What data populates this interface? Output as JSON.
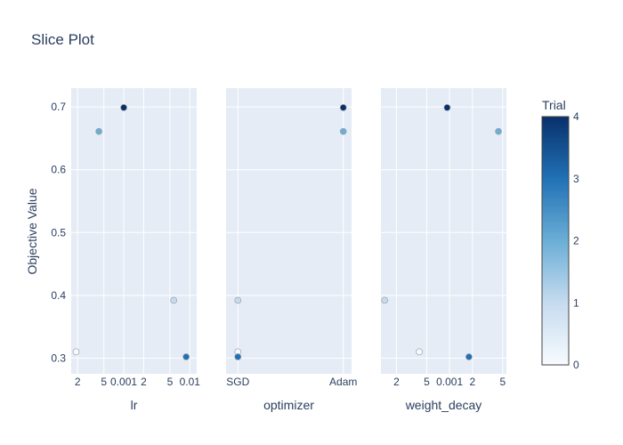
{
  "chart_data": {
    "type": "scatter",
    "title": "Slice Plot",
    "ylabel": "Objective Value",
    "ylim": [
      0.275,
      0.73
    ],
    "yticks": [
      0.3,
      0.4,
      0.5,
      0.6,
      0.7
    ],
    "ytick_labels": [
      "0.3",
      "0.4",
      "0.5",
      "0.6",
      "0.7"
    ],
    "colorbar": {
      "title": "Trial",
      "range": [
        0,
        4
      ],
      "ticks": [
        0,
        1,
        2,
        3,
        4
      ],
      "tick_labels": [
        "0",
        "1",
        "2",
        "3",
        "4"
      ],
      "colors": [
        "#f7fbff",
        "#c6dbef",
        "#6baed6",
        "#2171b5",
        "#08306b"
      ]
    },
    "panels": [
      {
        "xlabel": "lr",
        "scale": "log",
        "xlim": [
          0.00016,
          0.0127
        ],
        "xticks": [
          0.0002,
          0.0005,
          0.001,
          0.002,
          0.005,
          0.01
        ],
        "xtick_labels": [
          "2",
          "5",
          "0.001",
          "2",
          "5",
          "0.01"
        ],
        "points": [
          {
            "trial": 0,
            "x": 0.00019,
            "y": 0.31
          },
          {
            "trial": 1,
            "x": 0.0057,
            "y": 0.392
          },
          {
            "trial": 2,
            "x": 0.00042,
            "y": 0.661
          },
          {
            "trial": 3,
            "x": 0.0088,
            "y": 0.302
          },
          {
            "trial": 4,
            "x": 0.001,
            "y": 0.699
          }
        ]
      },
      {
        "xlabel": "optimizer",
        "scale": "category",
        "categories": [
          "SGD",
          "Adam"
        ],
        "xtick_labels": [
          "SGD",
          "Adam"
        ],
        "points": [
          {
            "trial": 0,
            "x": "SGD",
            "y": 0.31
          },
          {
            "trial": 1,
            "x": "SGD",
            "y": 0.392
          },
          {
            "trial": 2,
            "x": "Adam",
            "y": 0.661
          },
          {
            "trial": 3,
            "x": "SGD",
            "y": 0.302
          },
          {
            "trial": 4,
            "x": "Adam",
            "y": 0.699
          }
        ]
      },
      {
        "xlabel": "weight_decay",
        "scale": "log",
        "xlim": [
          0.000125,
          0.0056
        ],
        "xticks": [
          0.0002,
          0.0005,
          0.001,
          0.002,
          0.005
        ],
        "xtick_labels": [
          "2",
          "5",
          "0.001",
          "2",
          "5"
        ],
        "points": [
          {
            "trial": 0,
            "x": 0.0004,
            "y": 0.31
          },
          {
            "trial": 1,
            "x": 0.00014,
            "y": 0.392
          },
          {
            "trial": 2,
            "x": 0.0044,
            "y": 0.661
          },
          {
            "trial": 3,
            "x": 0.0018,
            "y": 0.302
          },
          {
            "trial": 4,
            "x": 0.00093,
            "y": 0.699
          }
        ]
      }
    ]
  }
}
